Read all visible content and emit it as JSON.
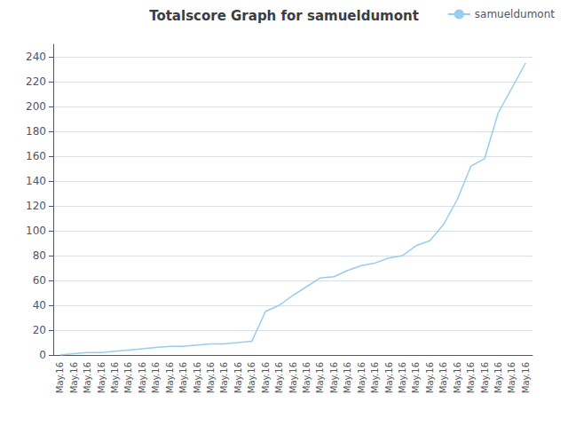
{
  "chart_data": {
    "type": "line",
    "title": "Totalscore Graph for samueldumont",
    "categories": [
      "May.16",
      "May.16",
      "May.16",
      "May.16",
      "May.16",
      "May.16",
      "May.16",
      "May.16",
      "May.16",
      "May.16",
      "May.16",
      "May.16",
      "May.16",
      "May.16",
      "May.16",
      "May.16",
      "May.16",
      "May.16",
      "May.16",
      "May.16",
      "May.16",
      "May.16",
      "May.16",
      "May.16",
      "May.16",
      "May.16",
      "May.16",
      "May.16",
      "May.16",
      "May.16",
      "May.16",
      "May.16",
      "May.16",
      "May.16",
      "May.16"
    ],
    "series": [
      {
        "name": "samueldumont",
        "color": "#99ccee",
        "values": [
          0,
          1,
          2,
          2,
          3,
          4,
          5,
          6,
          7,
          7,
          8,
          9,
          9,
          10,
          11,
          35,
          40,
          48,
          55,
          62,
          63,
          68,
          72,
          74,
          78,
          80,
          88,
          92,
          105,
          125,
          152,
          158,
          195,
          215,
          235
        ]
      }
    ],
    "ylim": [
      0,
      250
    ],
    "yticks": [
      0,
      20,
      40,
      60,
      80,
      100,
      120,
      140,
      160,
      180,
      200,
      220,
      240
    ],
    "grid": true,
    "legend": "upper right"
  }
}
